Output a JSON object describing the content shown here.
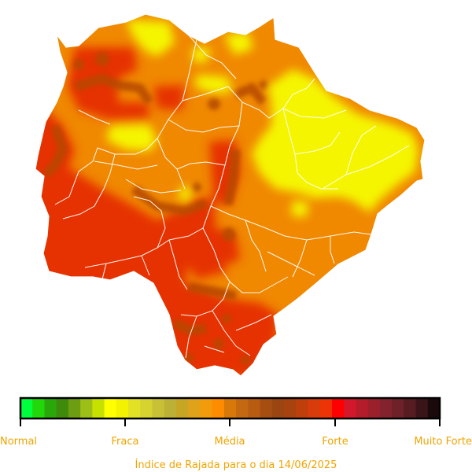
{
  "map": {
    "region": "Mato Grosso do Sul",
    "categories": {
      "red": "#e63000",
      "orange": "#f08800",
      "dark": "#b54a00",
      "yellow": "#f5f500"
    }
  },
  "legend": {
    "colors": [
      "#00ff3c",
      "#22d70a",
      "#2aa80a",
      "#3f8a0a",
      "#6d9e12",
      "#9cbf18",
      "#c8e000",
      "#ffff00",
      "#f3f200",
      "#e3e126",
      "#d6d230",
      "#c9c135",
      "#bdb037",
      "#c8a625",
      "#e0a21a",
      "#f29c0c",
      "#ff8c00",
      "#d8780a",
      "#c46812",
      "#b85c12",
      "#a64d12",
      "#9b4512",
      "#a8420f",
      "#bf3f0c",
      "#d83c0a",
      "#ec3406",
      "#ff0000",
      "#d4172a",
      "#b51c2a",
      "#9c1f2c",
      "#83222d",
      "#6e2128",
      "#571c22",
      "#3b1419",
      "#1a0a0c"
    ],
    "labels": [
      "Normal",
      "Fraca",
      "Média",
      "Forte",
      "Muito Forte"
    ]
  },
  "caption": "Índice de Rajada para o dia 14/06/2025"
}
